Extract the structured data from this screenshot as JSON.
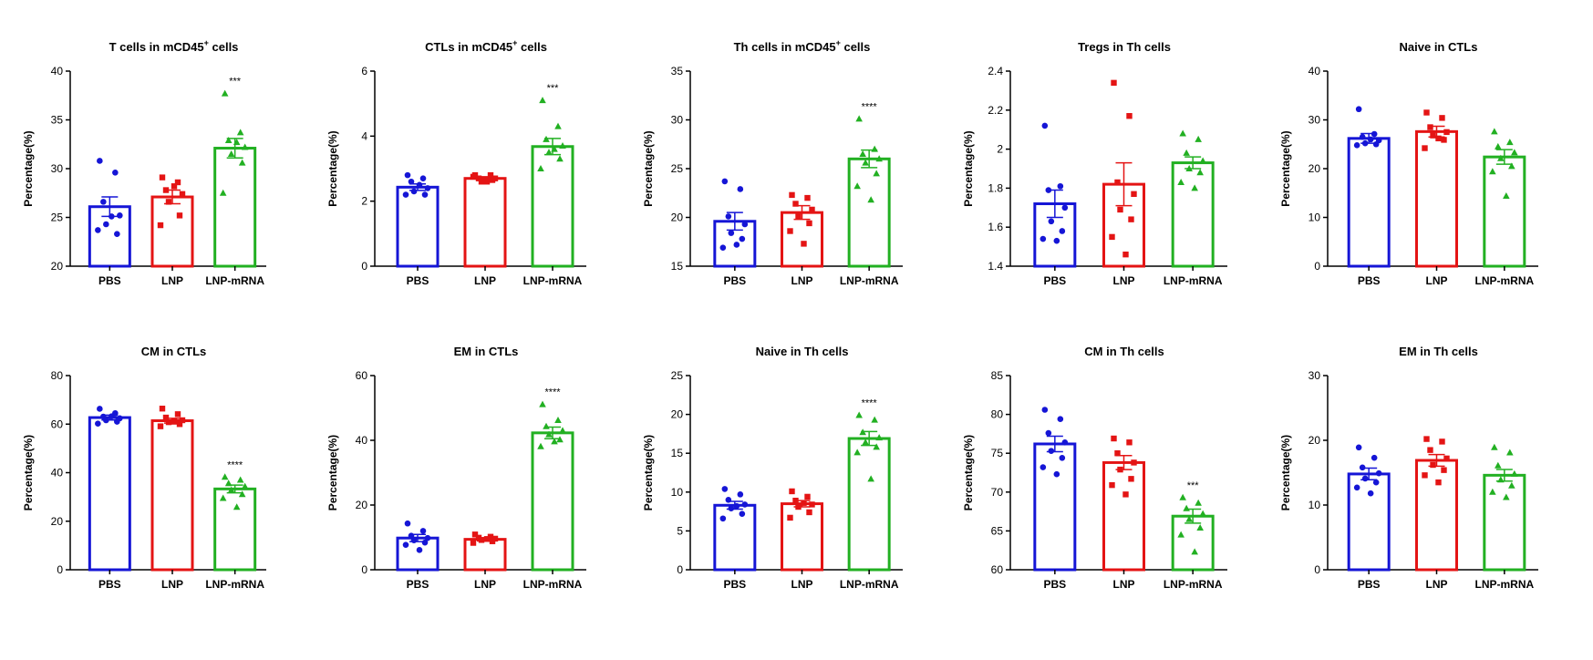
{
  "groups": [
    "PBS",
    "LNP",
    "LNP-mRNA"
  ],
  "colors": {
    "PBS": "#1515d6",
    "LNP": "#e41414",
    "LNP-mRNA": "#22b022"
  },
  "markers": {
    "PBS": "circle",
    "LNP": "square",
    "LNP-mRNA": "triangle"
  },
  "chart_data": [
    {
      "type": "bar",
      "title": "T cells  in mCD45",
      "title_sup": "+",
      "title_after": " cells",
      "ylabel": "Percentage(%)",
      "ylim": [
        20,
        40
      ],
      "yticks": [
        20,
        25,
        30,
        35,
        40
      ],
      "categories": [
        "PBS",
        "LNP",
        "LNP-mRNA"
      ],
      "values": [
        26.1,
        27.1,
        32.1
      ],
      "errors": [
        1.0,
        0.7,
        1.0
      ],
      "points": [
        [
          30.8,
          29.6,
          26.6,
          25.2,
          24.3,
          23.3,
          23.7,
          25.1
        ],
        [
          29.1,
          28.6,
          27.8,
          27.4,
          26.6,
          25.2,
          24.2,
          28.2
        ],
        [
          37.7,
          33.7,
          32.9,
          32.2,
          31.5,
          30.6,
          27.5,
          32.7
        ]
      ],
      "significance": [
        null,
        null,
        "***"
      ]
    },
    {
      "type": "bar",
      "title": "CTLs  in mCD45",
      "title_sup": "+",
      "title_after": " cells",
      "ylabel": "Percentage(%)",
      "ylim": [
        0,
        6
      ],
      "yticks": [
        0,
        2,
        4,
        6
      ],
      "categories": [
        "PBS",
        "LNP",
        "LNP-mRNA"
      ],
      "values": [
        2.43,
        2.7,
        3.68
      ],
      "errors": [
        0.1,
        0.05,
        0.25
      ],
      "points": [
        [
          2.8,
          2.7,
          2.6,
          2.4,
          2.3,
          2.2,
          2.2,
          2.5
        ],
        [
          2.8,
          2.8,
          2.7,
          2.7,
          2.6,
          2.65,
          2.75,
          2.6
        ],
        [
          5.1,
          4.3,
          3.9,
          3.7,
          3.5,
          3.3,
          3.0,
          3.6
        ]
      ],
      "significance": [
        null,
        null,
        "***"
      ]
    },
    {
      "type": "bar",
      "title": "Th cells in mCD45",
      "title_sup": "+",
      "title_after": " cells",
      "ylabel": "Percentage(%)",
      "ylim": [
        15,
        35
      ],
      "yticks": [
        15,
        20,
        25,
        30,
        35
      ],
      "categories": [
        "PBS",
        "LNP",
        "LNP-mRNA"
      ],
      "values": [
        19.6,
        20.5,
        26.0
      ],
      "errors": [
        0.9,
        0.7,
        0.9
      ],
      "points": [
        [
          23.7,
          22.9,
          20.1,
          19.3,
          18.4,
          17.8,
          16.9,
          17.2
        ],
        [
          22.3,
          22.0,
          21.4,
          20.8,
          20.1,
          19.4,
          18.6,
          17.3
        ],
        [
          30.1,
          27.0,
          26.5,
          26.0,
          25.6,
          24.5,
          23.2,
          21.8
        ]
      ],
      "significance": [
        null,
        null,
        "****"
      ]
    },
    {
      "type": "bar",
      "title": "Tregs in Th cells",
      "title_sup": "",
      "title_after": "",
      "ylabel": "Percentage(%)",
      "ylim": [
        1.4,
        2.4
      ],
      "yticks": [
        1.4,
        1.6,
        1.8,
        2.0,
        2.2,
        2.4
      ],
      "categories": [
        "PBS",
        "LNP",
        "LNP-mRNA"
      ],
      "values": [
        1.72,
        1.82,
        1.93
      ],
      "errors": [
        0.07,
        0.11,
        0.03
      ],
      "points": [
        [
          2.12,
          1.81,
          1.79,
          1.7,
          1.63,
          1.58,
          1.54,
          1.53
        ],
        [
          2.34,
          2.17,
          1.83,
          1.77,
          1.69,
          1.64,
          1.55,
          1.46
        ],
        [
          2.08,
          2.05,
          1.98,
          1.94,
          1.9,
          1.88,
          1.83,
          1.8
        ]
      ],
      "significance": [
        null,
        null,
        null
      ]
    },
    {
      "type": "bar",
      "title": "Naive in CTLs",
      "title_sup": "",
      "title_after": "",
      "ylabel": "Percentage(%)",
      "ylim": [
        0,
        40
      ],
      "yticks": [
        0,
        10,
        20,
        30,
        40
      ],
      "categories": [
        "PBS",
        "LNP",
        "LNP-mRNA"
      ],
      "values": [
        26.2,
        27.6,
        22.4
      ],
      "errors": [
        1.0,
        1.1,
        1.5
      ],
      "points": [
        [
          32.2,
          27.1,
          26.5,
          25.8,
          25.2,
          25.0,
          24.8,
          26.0
        ],
        [
          31.5,
          30.4,
          28.5,
          27.5,
          26.8,
          25.9,
          24.2,
          26.2
        ],
        [
          27.6,
          25.4,
          24.5,
          23.3,
          22.1,
          20.5,
          19.4,
          14.4
        ]
      ],
      "significance": [
        null,
        null,
        null
      ]
    },
    {
      "type": "bar",
      "title": "CM in CTLs",
      "title_sup": "",
      "title_after": "",
      "ylabel": "Percentage(%)",
      "ylim": [
        0,
        80
      ],
      "yticks": [
        0,
        20,
        40,
        60,
        80
      ],
      "categories": [
        "PBS",
        "LNP",
        "LNP-mRNA"
      ],
      "values": [
        62.7,
        61.4,
        33.3
      ],
      "errors": [
        1.0,
        1.0,
        1.6
      ],
      "points": [
        [
          66.3,
          64.5,
          63.1,
          62.4,
          61.6,
          61.0,
          60.2,
          63.2
        ],
        [
          66.4,
          64.1,
          62.7,
          61.6,
          60.8,
          60.0,
          59.1,
          61.0
        ],
        [
          38.2,
          37.0,
          35.6,
          34.3,
          32.8,
          31.1,
          29.5,
          25.8
        ]
      ],
      "significance": [
        null,
        null,
        "****"
      ]
    },
    {
      "type": "bar",
      "title": "EM in CTLs",
      "title_sup": "",
      "title_after": "",
      "ylabel": "Percentage(%)",
      "ylim": [
        0,
        60
      ],
      "yticks": [
        0,
        20,
        40,
        60
      ],
      "categories": [
        "PBS",
        "LNP",
        "LNP-mRNA"
      ],
      "values": [
        9.8,
        9.4,
        42.3
      ],
      "errors": [
        1.1,
        0.5,
        1.8
      ],
      "points": [
        [
          14.3,
          12.0,
          10.5,
          9.8,
          9.1,
          8.4,
          7.7,
          6.1
        ],
        [
          10.9,
          10.2,
          9.9,
          9.6,
          9.2,
          8.8,
          8.3,
          9.5
        ],
        [
          51.1,
          46.2,
          44.3,
          43.0,
          41.8,
          40.2,
          38.1,
          39.6
        ]
      ],
      "significance": [
        null,
        null,
        "****"
      ]
    },
    {
      "type": "bar",
      "title": "Naive in Th cells",
      "title_sup": "",
      "title_after": "",
      "ylabel": "Percentage(%)",
      "ylim": [
        0,
        25
      ],
      "yticks": [
        0,
        5,
        10,
        15,
        20,
        25
      ],
      "categories": [
        "PBS",
        "LNP",
        "LNP-mRNA"
      ],
      "values": [
        8.3,
        8.5,
        16.9
      ],
      "errors": [
        0.5,
        0.4,
        0.9
      ],
      "points": [
        [
          10.4,
          9.7,
          9.0,
          8.4,
          7.9,
          7.2,
          6.6,
          8.2
        ],
        [
          10.1,
          9.4,
          8.9,
          8.4,
          8.1,
          7.4,
          6.7,
          8.6
        ],
        [
          19.9,
          19.3,
          17.7,
          17.0,
          16.4,
          15.8,
          15.1,
          11.7
        ]
      ],
      "significance": [
        null,
        null,
        "****"
      ]
    },
    {
      "type": "bar",
      "title": "CM in Th cells",
      "title_sup": "",
      "title_after": "",
      "ylabel": "Percentage(%)",
      "ylim": [
        60,
        85
      ],
      "yticks": [
        60,
        65,
        70,
        75,
        80,
        85
      ],
      "categories": [
        "PBS",
        "LNP",
        "LNP-mRNA"
      ],
      "values": [
        76.2,
        73.8,
        66.9
      ],
      "errors": [
        1.0,
        0.9,
        0.9
      ],
      "points": [
        [
          80.6,
          79.4,
          77.6,
          76.4,
          75.3,
          74.4,
          73.2,
          72.3
        ],
        [
          76.9,
          76.4,
          75.0,
          73.8,
          72.9,
          71.7,
          70.9,
          69.7
        ],
        [
          69.3,
          68.6,
          67.9,
          67.2,
          66.5,
          65.4,
          64.5,
          62.3
        ]
      ],
      "significance": [
        null,
        null,
        "***"
      ]
    },
    {
      "type": "bar",
      "title": "EM in Th cells",
      "title_sup": "",
      "title_after": "",
      "ylabel": "Percentage(%)",
      "ylim": [
        0,
        30
      ],
      "yticks": [
        0,
        10,
        20,
        30
      ],
      "categories": [
        "PBS",
        "LNP",
        "LNP-mRNA"
      ],
      "values": [
        14.8,
        16.9,
        14.6
      ],
      "errors": [
        0.9,
        0.9,
        0.9
      ],
      "points": [
        [
          18.9,
          17.3,
          15.8,
          14.9,
          14.1,
          13.5,
          12.7,
          11.8
        ],
        [
          20.2,
          19.8,
          18.5,
          17.2,
          16.2,
          15.4,
          14.6,
          13.5
        ],
        [
          18.9,
          18.1,
          16.1,
          14.8,
          13.9,
          13.0,
          12.0,
          11.2
        ]
      ],
      "significance": [
        null,
        null,
        null
      ]
    }
  ]
}
